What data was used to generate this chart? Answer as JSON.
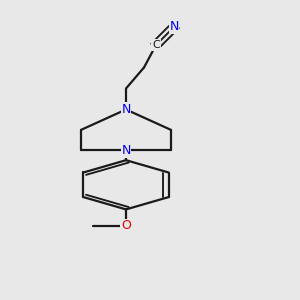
{
  "bg_color": "#e8e8e8",
  "bond_color": "#1a1a1a",
  "N_color": "#0000ee",
  "O_color": "#ee0000",
  "C_color": "#1a1a1a",
  "lw": 1.6,
  "fig_width": 3.0,
  "fig_height": 3.0,
  "dpi": 100,
  "xlim": [
    0.25,
    0.75
  ],
  "ylim": [
    0.02,
    1.02
  ]
}
